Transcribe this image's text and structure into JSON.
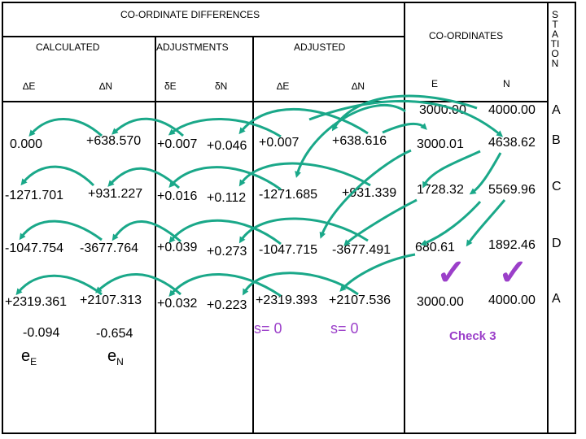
{
  "header": {
    "coordinate_differences": "CO-ORDINATE DIFFERENCES",
    "calculated": "CALCULATED",
    "adjustments": "ADJUSTMENTS",
    "adjusted": "ADJUSTED",
    "coordinates": "CO-ORDINATES",
    "station": "STATION"
  },
  "columns": {
    "dE": "∆E",
    "dN": "∆N",
    "adjE": "δE",
    "adjN": "δN",
    "adjdE": "∆E",
    "adjdN": "∆N",
    "E": "E",
    "N": "N"
  },
  "start": {
    "E": "3000.00",
    "N": "4000.00",
    "station": "A"
  },
  "rows": [
    {
      "dE": "0.000",
      "dN": "+638.570",
      "adjE": "+0.007",
      "adjN": "+0.046",
      "adjdE": "+0.007",
      "adjdN": "+638.616",
      "E": "3000.01",
      "N": "4638.62",
      "station": "B"
    },
    {
      "dE": "-1271.701",
      "dN": "+931.227",
      "adjE": "+0.016",
      "adjN": "+0.112",
      "adjdE": "-1271.685",
      "adjdN": "+931.339",
      "E": "1728.32",
      "N": "5569.96",
      "station": "C"
    },
    {
      "dE": "-1047.754",
      "dN": "-3677.764",
      "adjE": "+0.039",
      "adjN": "+0.273",
      "adjdE": "-1047.715",
      "adjdN": "-3677.491",
      "E": "680.61",
      "N": "1892.46",
      "station": "D"
    },
    {
      "dE": "+2319.361",
      "dN": "+2107.313",
      "adjE": "+0.032",
      "adjN": "+0.223",
      "adjdE": "+2319.393",
      "adjdN": "+2107.536",
      "E": "3000.00",
      "N": "4000.00",
      "station": "A"
    }
  ],
  "misclosure": {
    "eE_value": "-0.094",
    "eN_value": "-0.654",
    "eE_symbol": "e",
    "eE_sub": "E",
    "eN_symbol": "e",
    "eN_sub": "N"
  },
  "sums": {
    "E": "s= 0",
    "N": "s= 0"
  },
  "check": {
    "label": "Check 3",
    "tick": "✓"
  },
  "colors": {
    "arrow": "#1aa889",
    "accent": "#9b3fc9"
  }
}
